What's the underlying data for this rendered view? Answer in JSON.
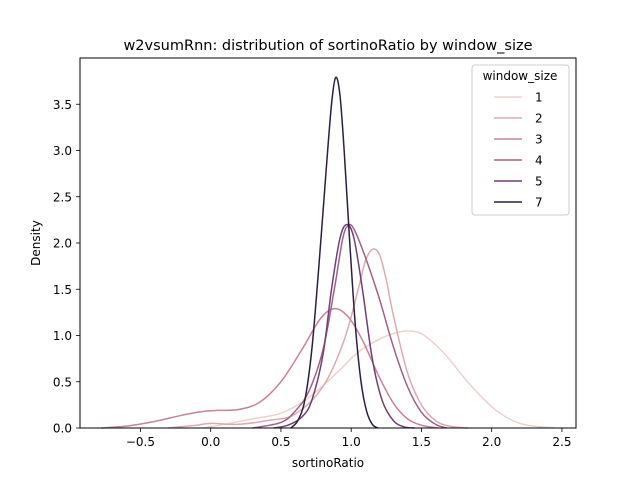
{
  "chart_data": {
    "type": "line",
    "title": "w2vsumRnn: distribution of sortinoRatio by window_size",
    "xlabel": "sortinoRatio",
    "ylabel": "Density",
    "xlim": [
      -0.93,
      2.6
    ],
    "ylim": [
      0,
      4.0
    ],
    "xticks": [
      -0.5,
      0.0,
      0.5,
      1.0,
      1.5,
      2.0,
      2.5
    ],
    "xtick_labels": [
      "−0.5",
      "0.0",
      "0.5",
      "1.0",
      "1.5",
      "2.0",
      "2.5"
    ],
    "yticks": [
      0.0,
      0.5,
      1.0,
      1.5,
      2.0,
      2.5,
      3.0,
      3.5
    ],
    "ytick_labels": [
      "0.0",
      "0.5",
      "1.0",
      "1.5",
      "2.0",
      "2.5",
      "3.0",
      "3.5"
    ],
    "grid": false,
    "legend": {
      "title": "window_size",
      "position": "top-right"
    },
    "series": [
      {
        "name": "1",
        "color": "#ecd2cb",
        "points": [
          [
            -0.05,
            0.0
          ],
          [
            0.1,
            0.04
          ],
          [
            0.3,
            0.1
          ],
          [
            0.5,
            0.16
          ],
          [
            0.7,
            0.33
          ],
          [
            0.9,
            0.6
          ],
          [
            1.05,
            0.82
          ],
          [
            1.2,
            0.96
          ],
          [
            1.3,
            1.02
          ],
          [
            1.4,
            1.05
          ],
          [
            1.5,
            1.02
          ],
          [
            1.6,
            0.9
          ],
          [
            1.7,
            0.74
          ],
          [
            1.8,
            0.55
          ],
          [
            1.9,
            0.38
          ],
          [
            2.0,
            0.23
          ],
          [
            2.1,
            0.12
          ],
          [
            2.2,
            0.05
          ],
          [
            2.3,
            0.02
          ],
          [
            2.45,
            0.0
          ]
        ]
      },
      {
        "name": "2",
        "color": "#dcaab0",
        "points": [
          [
            -0.3,
            0.0
          ],
          [
            -0.1,
            0.03
          ],
          [
            0.0,
            0.05
          ],
          [
            0.2,
            0.04
          ],
          [
            0.4,
            0.08
          ],
          [
            0.6,
            0.15
          ],
          [
            0.8,
            0.45
          ],
          [
            0.95,
            0.95
          ],
          [
            1.05,
            1.5
          ],
          [
            1.1,
            1.8
          ],
          [
            1.15,
            1.93
          ],
          [
            1.2,
            1.88
          ],
          [
            1.25,
            1.6
          ],
          [
            1.3,
            1.22
          ],
          [
            1.4,
            0.6
          ],
          [
            1.5,
            0.25
          ],
          [
            1.6,
            0.08
          ],
          [
            1.7,
            0.02
          ],
          [
            1.83,
            0.0
          ]
        ]
      },
      {
        "name": "3",
        "color": "#c6829d",
        "points": [
          [
            -0.78,
            0.0
          ],
          [
            -0.6,
            0.02
          ],
          [
            -0.4,
            0.07
          ],
          [
            -0.2,
            0.14
          ],
          [
            -0.05,
            0.18
          ],
          [
            0.05,
            0.19
          ],
          [
            0.2,
            0.2
          ],
          [
            0.35,
            0.28
          ],
          [
            0.5,
            0.5
          ],
          [
            0.65,
            0.85
          ],
          [
            0.78,
            1.18
          ],
          [
            0.88,
            1.29
          ],
          [
            0.98,
            1.2
          ],
          [
            1.08,
            0.95
          ],
          [
            1.2,
            0.55
          ],
          [
            1.3,
            0.27
          ],
          [
            1.4,
            0.1
          ],
          [
            1.5,
            0.03
          ],
          [
            1.62,
            0.0
          ]
        ]
      },
      {
        "name": "4",
        "color": "#a0608a",
        "points": [
          [
            0.3,
            0.0
          ],
          [
            0.5,
            0.06
          ],
          [
            0.6,
            0.18
          ],
          [
            0.7,
            0.4
          ],
          [
            0.8,
            0.85
          ],
          [
            0.88,
            1.5
          ],
          [
            0.94,
            2.05
          ],
          [
            0.98,
            2.19
          ],
          [
            1.02,
            2.15
          ],
          [
            1.1,
            1.85
          ],
          [
            1.2,
            1.4
          ],
          [
            1.3,
            0.88
          ],
          [
            1.4,
            0.45
          ],
          [
            1.5,
            0.17
          ],
          [
            1.6,
            0.04
          ],
          [
            1.68,
            0.0
          ]
        ]
      },
      {
        "name": "5",
        "color": "#6f3f73",
        "points": [
          [
            0.45,
            0.0
          ],
          [
            0.55,
            0.03
          ],
          [
            0.65,
            0.12
          ],
          [
            0.72,
            0.3
          ],
          [
            0.8,
            0.8
          ],
          [
            0.86,
            1.5
          ],
          [
            0.92,
            2.05
          ],
          [
            0.97,
            2.2
          ],
          [
            1.02,
            2.05
          ],
          [
            1.08,
            1.5
          ],
          [
            1.15,
            0.75
          ],
          [
            1.22,
            0.3
          ],
          [
            1.3,
            0.08
          ],
          [
            1.38,
            0.01
          ],
          [
            1.45,
            0.0
          ]
        ]
      },
      {
        "name": "7",
        "color": "#2d1e3e",
        "points": [
          [
            0.57,
            0.0
          ],
          [
            0.62,
            0.08
          ],
          [
            0.67,
            0.3
          ],
          [
            0.72,
            0.85
          ],
          [
            0.77,
            1.75
          ],
          [
            0.82,
            2.75
          ],
          [
            0.86,
            3.5
          ],
          [
            0.89,
            3.79
          ],
          [
            0.92,
            3.6
          ],
          [
            0.95,
            3.0
          ],
          [
            0.99,
            2.0
          ],
          [
            1.03,
            1.1
          ],
          [
            1.07,
            0.5
          ],
          [
            1.11,
            0.18
          ],
          [
            1.15,
            0.04
          ],
          [
            1.19,
            0.0
          ]
        ]
      }
    ]
  }
}
